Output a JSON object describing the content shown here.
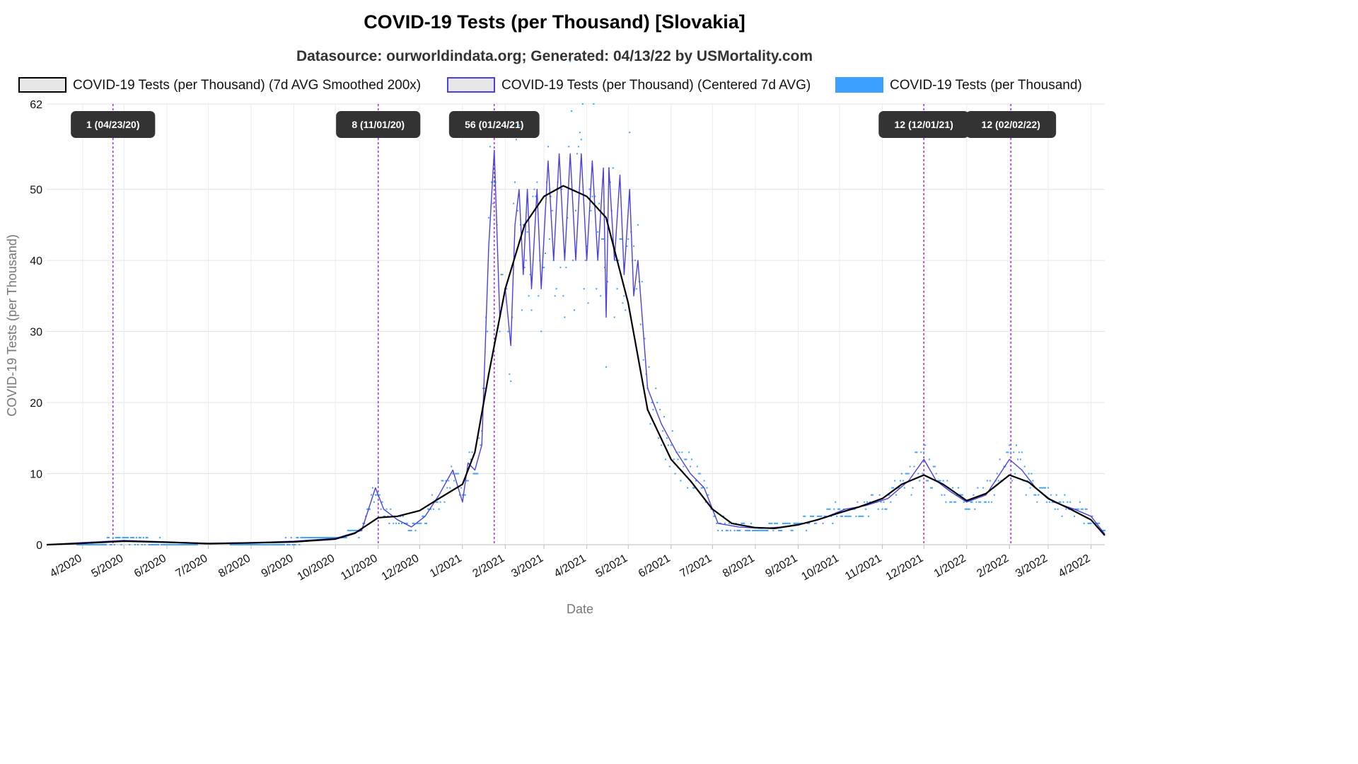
{
  "chart_data": {
    "type": "line",
    "title": "COVID-19 Tests (per Thousand) [Slovakia]",
    "subtitle": "Datasource: ourworldindata.org; Generated: 04/13/22 by USMortality.com",
    "xlabel": "Date",
    "ylabel": "COVID-19 Tests (per Thousand)",
    "ylim": [
      0,
      62
    ],
    "y_ticks": [
      0,
      10,
      20,
      30,
      40,
      50,
      62
    ],
    "x_range": [
      "2020-03-06",
      "2022-04-11"
    ],
    "x_ticks": [
      {
        "date": "2020-04-01",
        "label": "4/2020"
      },
      {
        "date": "2020-05-01",
        "label": "5/2020"
      },
      {
        "date": "2020-06-01",
        "label": "6/2020"
      },
      {
        "date": "2020-07-01",
        "label": "7/2020"
      },
      {
        "date": "2020-08-01",
        "label": "8/2020"
      },
      {
        "date": "2020-09-01",
        "label": "9/2020"
      },
      {
        "date": "2020-10-01",
        "label": "10/2020"
      },
      {
        "date": "2020-11-01",
        "label": "11/2020"
      },
      {
        "date": "2020-12-01",
        "label": "12/2020"
      },
      {
        "date": "2021-01-01",
        "label": "1/2021"
      },
      {
        "date": "2021-02-01",
        "label": "2/2021"
      },
      {
        "date": "2021-03-01",
        "label": "3/2021"
      },
      {
        "date": "2021-04-01",
        "label": "4/2021"
      },
      {
        "date": "2021-05-01",
        "label": "5/2021"
      },
      {
        "date": "2021-06-01",
        "label": "6/2021"
      },
      {
        "date": "2021-07-01",
        "label": "7/2021"
      },
      {
        "date": "2021-08-01",
        "label": "8/2021"
      },
      {
        "date": "2021-09-01",
        "label": "9/2021"
      },
      {
        "date": "2021-10-01",
        "label": "10/2021"
      },
      {
        "date": "2021-11-01",
        "label": "11/2021"
      },
      {
        "date": "2021-12-01",
        "label": "12/2021"
      },
      {
        "date": "2022-01-01",
        "label": "1/2022"
      },
      {
        "date": "2022-02-01",
        "label": "2/2022"
      },
      {
        "date": "2022-03-01",
        "label": "3/2022"
      },
      {
        "date": "2022-04-01",
        "label": "4/2022"
      }
    ],
    "grid": true,
    "legend_position": "top",
    "colors": {
      "smoothed": "#000000",
      "centered": "#4a3fe0",
      "raw": "#3aa0ff",
      "annotation_line": "#9b30e0",
      "annotation_bg": "#333333"
    },
    "legend": [
      {
        "label": "COVID-19 Tests (per Thousand) (7d AVG Smoothed 200x)",
        "swatch_fill": "#e6e6e6",
        "swatch_stroke": "#000000"
      },
      {
        "label": "COVID-19 Tests (per Thousand) (Centered 7d AVG)",
        "swatch_fill": "#e6e6e6",
        "swatch_stroke": "#4a3fe0"
      },
      {
        "label": "COVID-19 Tests (per Thousand)",
        "swatch_fill": "#3aa0ff",
        "swatch_stroke": "#3aa0ff"
      }
    ],
    "annotations": [
      {
        "date": "2020-04-23",
        "label": "1 (04/23/20)"
      },
      {
        "date": "2020-11-01",
        "label": "8 (11/01/20)"
      },
      {
        "date": "2021-01-24",
        "label": "56 (01/24/21)"
      },
      {
        "date": "2021-12-01",
        "label": "12 (12/01/21)"
      },
      {
        "date": "2022-02-02",
        "label": "12 (02/02/22)"
      }
    ],
    "series": [
      {
        "name": "COVID-19 Tests (per Thousand) (7d AVG Smoothed 200x)",
        "style": "line",
        "points": [
          [
            "2020-03-06",
            0
          ],
          [
            "2020-04-01",
            0.2
          ],
          [
            "2020-05-01",
            0.5
          ],
          [
            "2020-06-01",
            0.35
          ],
          [
            "2020-07-01",
            0.15
          ],
          [
            "2020-08-01",
            0.25
          ],
          [
            "2020-09-01",
            0.4
          ],
          [
            "2020-10-01",
            0.8
          ],
          [
            "2020-10-15",
            1.6
          ],
          [
            "2020-11-01",
            3.8
          ],
          [
            "2020-11-15",
            4.0
          ],
          [
            "2020-12-01",
            4.8
          ],
          [
            "2020-12-15",
            6.5
          ],
          [
            "2021-01-01",
            8.5
          ],
          [
            "2021-01-10",
            13
          ],
          [
            "2021-01-20",
            24
          ],
          [
            "2021-02-01",
            36
          ],
          [
            "2021-02-15",
            45
          ],
          [
            "2021-03-01",
            49
          ],
          [
            "2021-03-15",
            50.5
          ],
          [
            "2021-04-01",
            49
          ],
          [
            "2021-04-15",
            46
          ],
          [
            "2021-05-01",
            34
          ],
          [
            "2021-05-15",
            19
          ],
          [
            "2021-06-01",
            12
          ],
          [
            "2021-06-15",
            9
          ],
          [
            "2021-07-01",
            5
          ],
          [
            "2021-07-15",
            3
          ],
          [
            "2021-08-01",
            2.4
          ],
          [
            "2021-08-15",
            2.3
          ],
          [
            "2021-09-01",
            2.8
          ],
          [
            "2021-09-15",
            3.5
          ],
          [
            "2021-10-01",
            4.5
          ],
          [
            "2021-10-15",
            5.3
          ],
          [
            "2021-11-01",
            6.5
          ],
          [
            "2021-11-15",
            8.5
          ],
          [
            "2021-12-01",
            9.8
          ],
          [
            "2021-12-15",
            8.5
          ],
          [
            "2022-01-01",
            6.2
          ],
          [
            "2022-01-15",
            7.2
          ],
          [
            "2022-02-01",
            9.8
          ],
          [
            "2022-02-15",
            8.8
          ],
          [
            "2022-03-01",
            6.5
          ],
          [
            "2022-03-15",
            5.2
          ],
          [
            "2022-04-01",
            3.5
          ],
          [
            "2022-04-11",
            1.3
          ]
        ]
      },
      {
        "name": "COVID-19 Tests (per Thousand) (Centered 7d AVG)",
        "style": "line",
        "points": [
          [
            "2020-03-06",
            0
          ],
          [
            "2020-04-01",
            0.3
          ],
          [
            "2020-05-01",
            0.6
          ],
          [
            "2020-06-01",
            0.4
          ],
          [
            "2020-07-01",
            0.2
          ],
          [
            "2020-08-01",
            0.3
          ],
          [
            "2020-09-01",
            0.5
          ],
          [
            "2020-10-01",
            0.9
          ],
          [
            "2020-10-20",
            2.0
          ],
          [
            "2020-10-30",
            8.0
          ],
          [
            "2020-11-05",
            5.0
          ],
          [
            "2020-11-15",
            3.5
          ],
          [
            "2020-11-25",
            2.5
          ],
          [
            "2020-12-05",
            4.0
          ],
          [
            "2020-12-15",
            7.0
          ],
          [
            "2020-12-25",
            10.5
          ],
          [
            "2021-01-01",
            6.0
          ],
          [
            "2021-01-05",
            11.5
          ],
          [
            "2021-01-10",
            10.5
          ],
          [
            "2021-01-15",
            14.0
          ],
          [
            "2021-01-20",
            42.0
          ],
          [
            "2021-01-24",
            55.5
          ],
          [
            "2021-01-28",
            32.0
          ],
          [
            "2021-02-01",
            36.0
          ],
          [
            "2021-02-05",
            28.0
          ],
          [
            "2021-02-08",
            45.0
          ],
          [
            "2021-02-11",
            50.0
          ],
          [
            "2021-02-14",
            38.0
          ],
          [
            "2021-02-17",
            50.0
          ],
          [
            "2021-02-20",
            36.0
          ],
          [
            "2021-02-24",
            50.0
          ],
          [
            "2021-02-27",
            36.0
          ],
          [
            "2021-03-04",
            54.0
          ],
          [
            "2021-03-08",
            40.0
          ],
          [
            "2021-03-12",
            55.0
          ],
          [
            "2021-03-16",
            40.0
          ],
          [
            "2021-03-20",
            55.0
          ],
          [
            "2021-03-24",
            40.0
          ],
          [
            "2021-03-28",
            55.0
          ],
          [
            "2021-04-01",
            40.0
          ],
          [
            "2021-04-05",
            54.0
          ],
          [
            "2021-04-09",
            40.0
          ],
          [
            "2021-04-13",
            53.0
          ],
          [
            "2021-04-15",
            32.0
          ],
          [
            "2021-04-17",
            53.0
          ],
          [
            "2021-04-21",
            40.0
          ],
          [
            "2021-04-25",
            52.0
          ],
          [
            "2021-04-28",
            38.0
          ],
          [
            "2021-05-02",
            50.0
          ],
          [
            "2021-05-05",
            35.0
          ],
          [
            "2021-05-08",
            40.0
          ],
          [
            "2021-05-15",
            22.0
          ],
          [
            "2021-05-25",
            17.0
          ],
          [
            "2021-06-05",
            13.0
          ],
          [
            "2021-06-15",
            10.0
          ],
          [
            "2021-06-25",
            8.0
          ],
          [
            "2021-07-05",
            3.0
          ],
          [
            "2021-07-20",
            2.5
          ],
          [
            "2021-08-05",
            2.3
          ],
          [
            "2021-08-20",
            2.5
          ],
          [
            "2021-09-05",
            3.0
          ],
          [
            "2021-09-20",
            3.8
          ],
          [
            "2021-10-05",
            5.0
          ],
          [
            "2021-10-20",
            5.5
          ],
          [
            "2021-11-05",
            6.5
          ],
          [
            "2021-11-20",
            9.0
          ],
          [
            "2021-12-01",
            12.0
          ],
          [
            "2021-12-10",
            9.0
          ],
          [
            "2021-12-20",
            7.5
          ],
          [
            "2022-01-01",
            6.0
          ],
          [
            "2022-01-15",
            7.0
          ],
          [
            "2022-02-01",
            12.0
          ],
          [
            "2022-02-10",
            10.5
          ],
          [
            "2022-02-20",
            8.0
          ],
          [
            "2022-03-05",
            6.0
          ],
          [
            "2022-03-20",
            5.0
          ],
          [
            "2022-04-01",
            4.0
          ],
          [
            "2022-04-11",
            1.5
          ]
        ]
      }
    ]
  }
}
